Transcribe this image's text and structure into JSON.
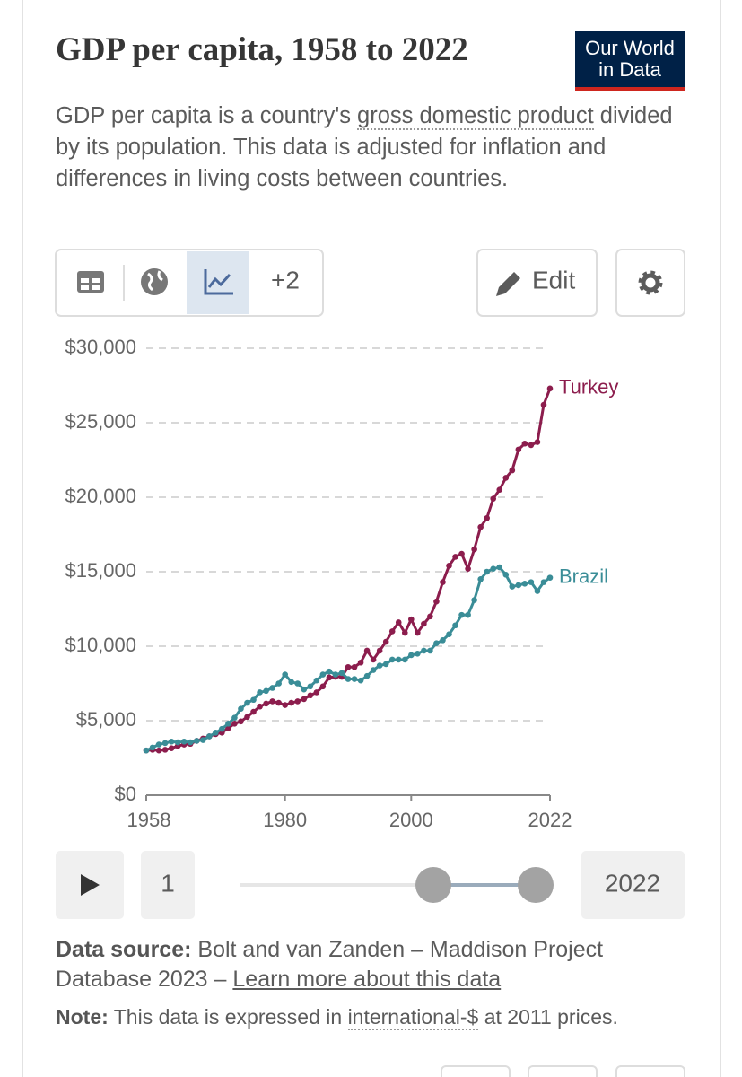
{
  "logo": [
    "Our World",
    "in Data"
  ],
  "subtitle": {
    "before": "GDP per capita is a country's ",
    "link": "gross domestic product",
    "after": " divided by its population. This data is adjusted for inflation and differences in living costs between countries."
  },
  "controls": {
    "more": "+2",
    "edit": "Edit"
  },
  "timeline": {
    "start": "1",
    "end": "2022"
  },
  "source": {
    "label": "Data source:",
    "text": " Bolt and van Zanden – Maddison Project Database 2023 – ",
    "link": "Learn more about this data"
  },
  "note": {
    "label": "Note:",
    "before": " This data is expressed in ",
    "link": "international-$",
    "after": " at 2011 prices."
  },
  "chart_data": {
    "type": "line",
    "title": "GDP per capita, 1958 to 2022",
    "x": [
      1958,
      1959,
      1960,
      1961,
      1962,
      1963,
      1964,
      1965,
      1966,
      1967,
      1968,
      1969,
      1970,
      1971,
      1972,
      1973,
      1974,
      1975,
      1976,
      1977,
      1978,
      1979,
      1980,
      1981,
      1982,
      1983,
      1984,
      1985,
      1986,
      1987,
      1988,
      1989,
      1990,
      1991,
      1992,
      1993,
      1994,
      1995,
      1996,
      1997,
      1998,
      1999,
      2000,
      2001,
      2002,
      2003,
      2004,
      2005,
      2006,
      2007,
      2008,
      2009,
      2010,
      2011,
      2012,
      2013,
      2014,
      2015,
      2016,
      2017,
      2018,
      2019,
      2020,
      2021,
      2022
    ],
    "series": [
      {
        "name": "Turkey",
        "color": "#8c1d4d",
        "values": [
          3000,
          3050,
          3000,
          3050,
          3150,
          3300,
          3400,
          3450,
          3650,
          3800,
          3950,
          4100,
          4200,
          4500,
          4800,
          4950,
          5250,
          5600,
          5950,
          6150,
          6300,
          6200,
          6050,
          6200,
          6300,
          6450,
          6700,
          6900,
          7300,
          7900,
          7950,
          7950,
          8600,
          8600,
          8900,
          9700,
          9100,
          9700,
          10300,
          11000,
          11600,
          10900,
          11800,
          10900,
          11500,
          12000,
          13000,
          14300,
          15400,
          16000,
          16200,
          15200,
          16500,
          18000,
          18600,
          19900,
          20500,
          21300,
          21800,
          23200,
          23600,
          23500,
          23700,
          26200,
          27300
        ]
      },
      {
        "name": "Brazil",
        "color": "#3a8d97",
        "values": [
          3000,
          3200,
          3400,
          3500,
          3600,
          3550,
          3600,
          3550,
          3650,
          3700,
          3950,
          4200,
          4450,
          4800,
          5200,
          5800,
          6200,
          6400,
          6900,
          7000,
          7200,
          7500,
          8100,
          7600,
          7500,
          7100,
          7300,
          7700,
          8100,
          8300,
          8100,
          8200,
          7800,
          7800,
          7700,
          8000,
          8400,
          8700,
          8800,
          9100,
          9100,
          9100,
          9400,
          9500,
          9700,
          9700,
          10200,
          10400,
          10800,
          11400,
          12100,
          12100,
          13100,
          14500,
          15000,
          15200,
          15300,
          14800,
          14000,
          14100,
          14200,
          14300,
          13700,
          14300,
          14600
        ]
      }
    ],
    "xlim": [
      1958,
      2022
    ],
    "xticks": [
      1958,
      1980,
      2000,
      2022
    ],
    "ylim": [
      0,
      30000
    ],
    "yticks": [
      {
        "value": 0,
        "label": "$0"
      },
      {
        "value": 5000,
        "label": "$5,000"
      },
      {
        "value": 10000,
        "label": "$10,000"
      },
      {
        "value": 15000,
        "label": "$15,000"
      },
      {
        "value": 20000,
        "label": "$20,000"
      },
      {
        "value": 25000,
        "label": "$25,000"
      },
      {
        "value": 30000,
        "label": "$30,000"
      }
    ],
    "grid": true
  }
}
